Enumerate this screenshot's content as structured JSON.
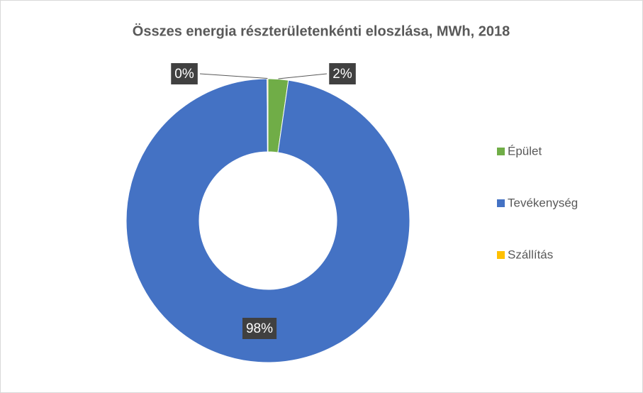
{
  "chart_data": {
    "type": "donut",
    "title": "Összes energia részterületenkénti eloszlása, MWh, 2018",
    "categories": [
      "Épület",
      "Tevékenység",
      "Szállítás"
    ],
    "values": [
      2.3,
      97.6,
      0.1
    ],
    "value_labels": [
      "2%",
      "98%",
      "0%"
    ],
    "colors": [
      "#70ad47",
      "#4472c4",
      "#ffc000"
    ],
    "legend": "right"
  }
}
